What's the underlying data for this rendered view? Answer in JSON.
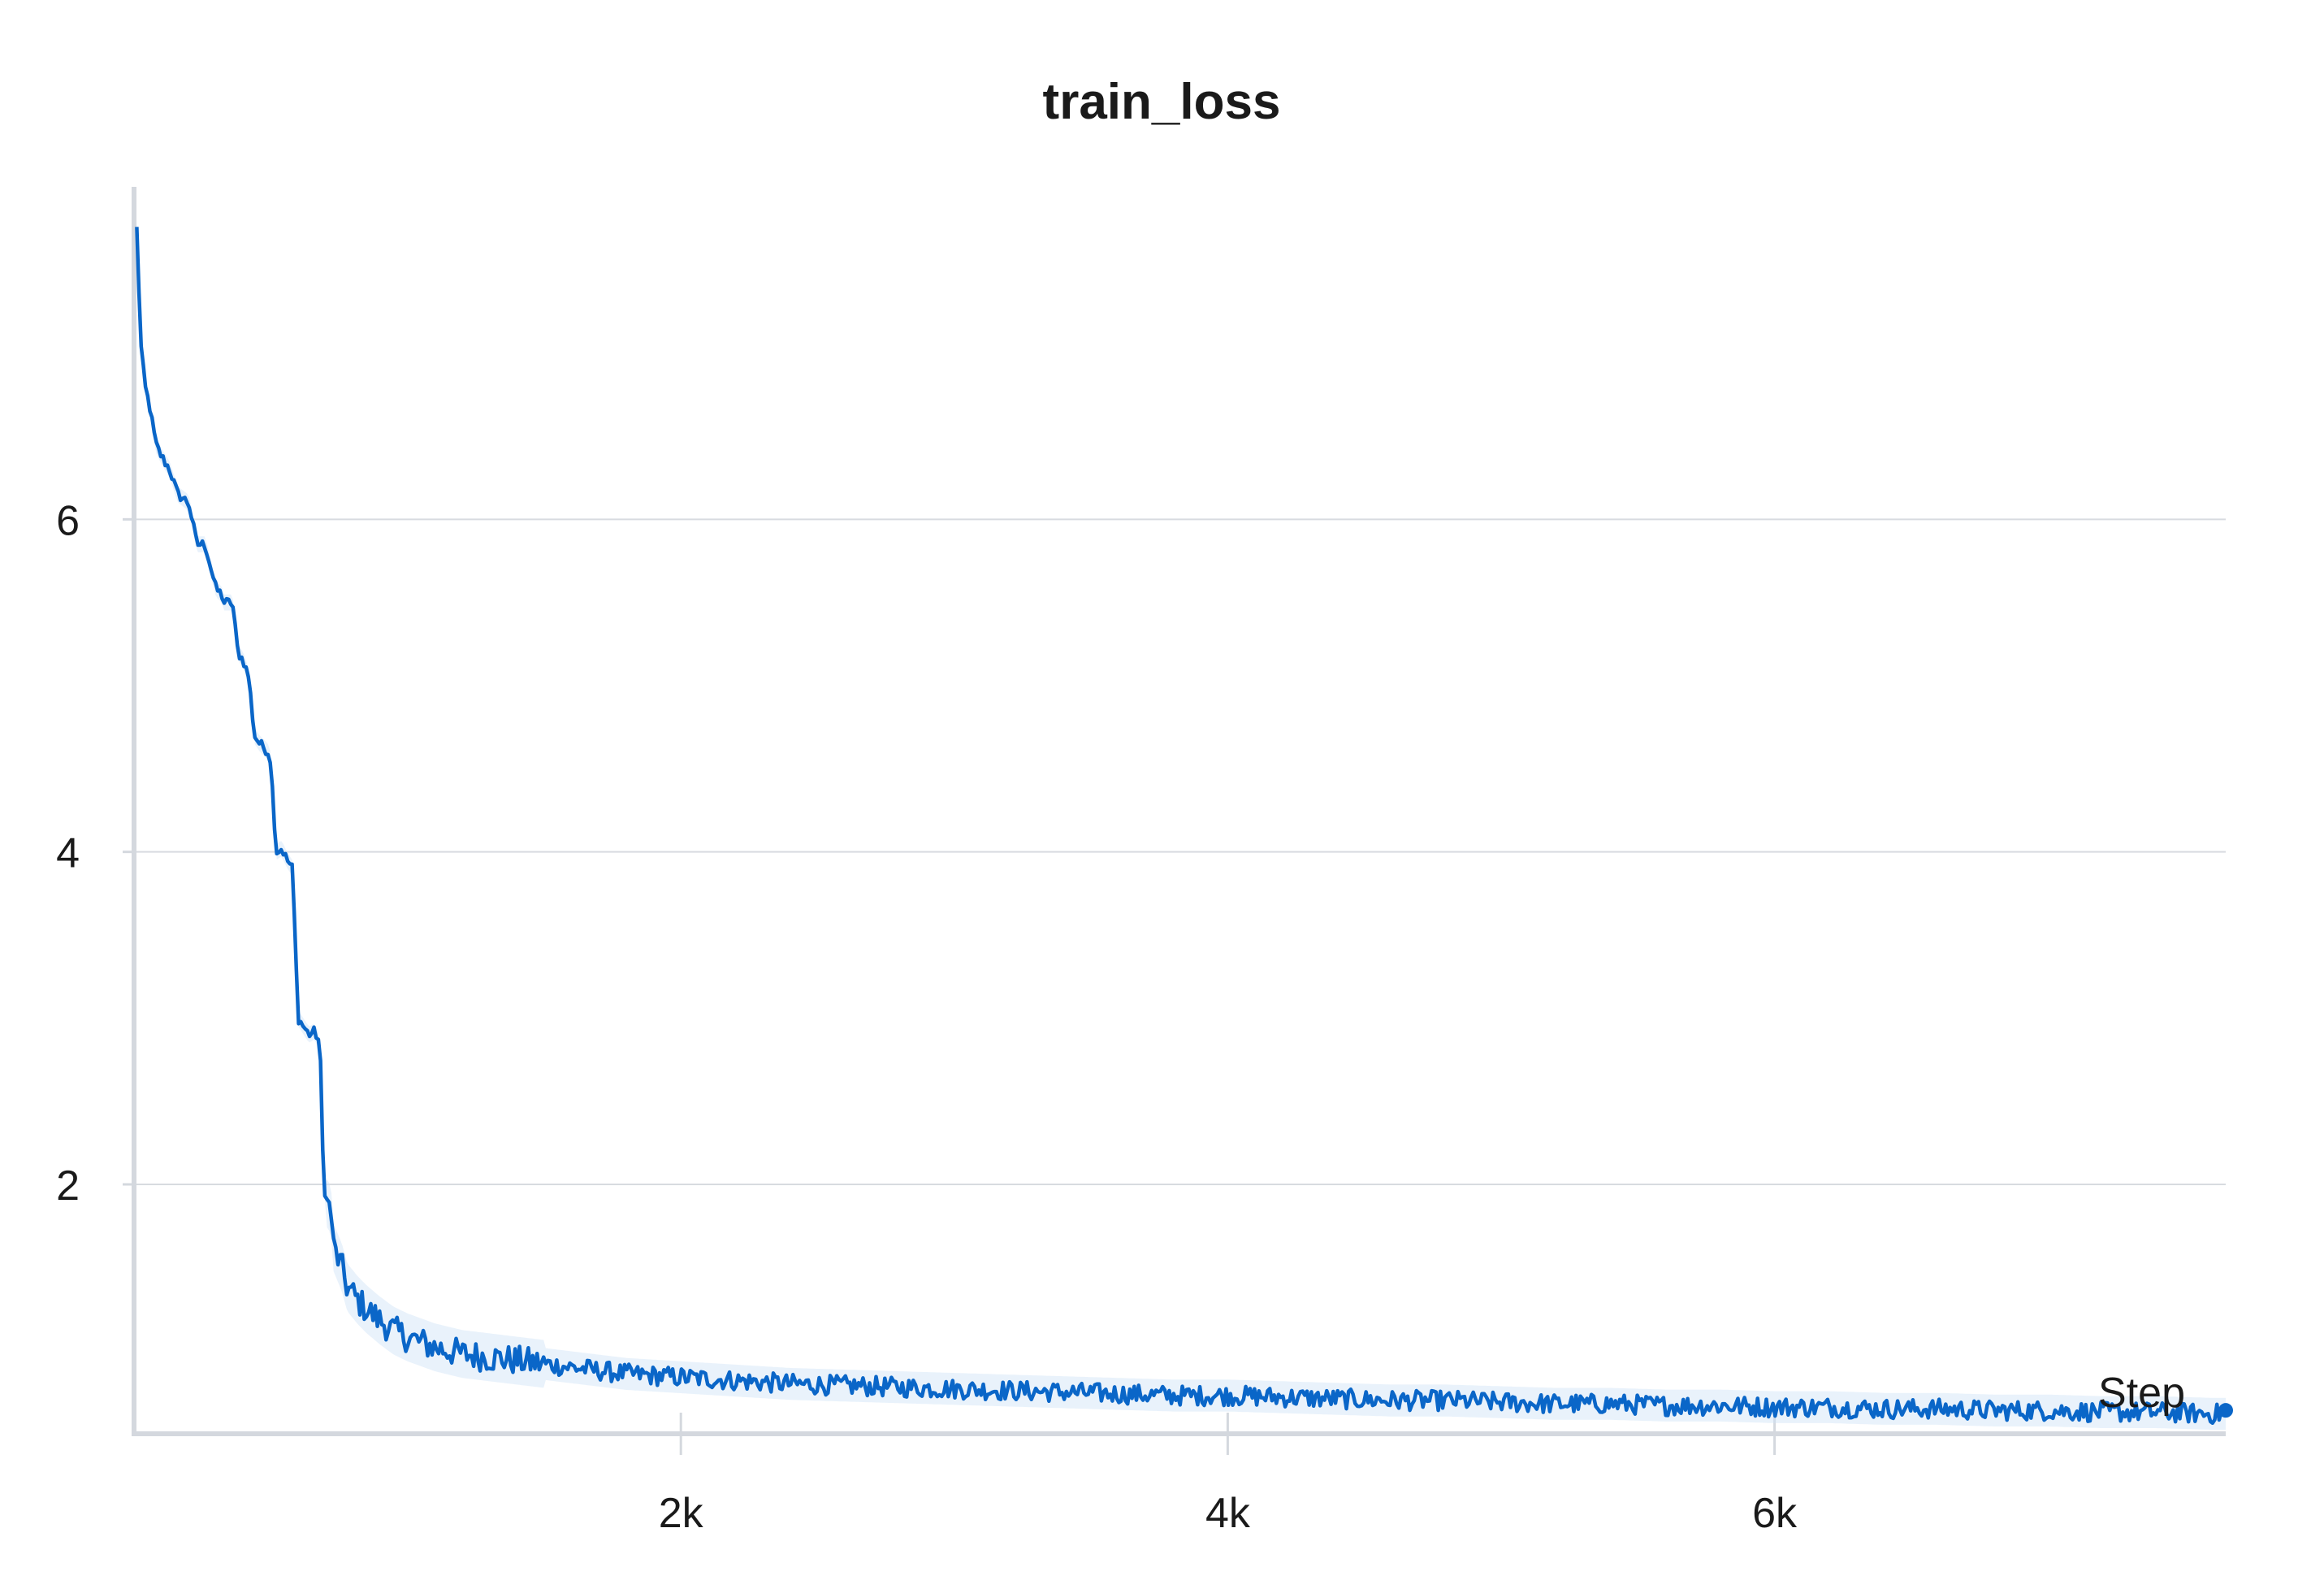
{
  "chart_data": {
    "type": "line",
    "title": "train_loss",
    "xlabel": "Step",
    "ylabel": "",
    "xlim": [
      0,
      7650
    ],
    "ylim": [
      0.5,
      8.0
    ],
    "grid": true,
    "x_ticks": [
      {
        "value": 2000,
        "label": "2k"
      },
      {
        "value": 4000,
        "label": "4k"
      },
      {
        "value": 6000,
        "label": "6k"
      }
    ],
    "y_ticks": [
      {
        "value": 2,
        "label": "2"
      },
      {
        "value": 4,
        "label": "4"
      },
      {
        "value": 6,
        "label": "6"
      }
    ],
    "series": [
      {
        "color": "#0a66c8",
        "x": [
          10,
          25,
          40,
          55,
          80,
          100,
          130,
          160,
          200,
          230,
          260,
          300,
          320,
          330,
          360,
          380,
          400,
          420,
          440,
          460,
          480,
          490,
          500,
          520,
          540,
          560,
          580,
          600,
          620,
          640,
          660,
          680,
          690,
          700,
          720,
          730,
          740,
          760,
          780,
          820,
          850,
          900,
          950,
          1000,
          1100,
          1200,
          1300,
          1400,
          1500,
          1600,
          1700,
          1800,
          1900,
          2000,
          2200,
          2400,
          2600,
          2800,
          3000,
          3200,
          3400,
          3600,
          3800,
          4000,
          4200,
          4400,
          4600,
          4800,
          5000,
          5200,
          5400,
          5600,
          5800,
          6000,
          6200,
          6400,
          6600,
          6800,
          7000,
          7200,
          7400,
          7600,
          7650
        ],
        "y": [
          7.75,
          7.05,
          6.8,
          6.7,
          6.45,
          6.38,
          6.3,
          6.15,
          6.1,
          5.85,
          5.85,
          5.58,
          5.55,
          5.5,
          5.5,
          5.2,
          5.15,
          5.05,
          4.7,
          4.65,
          4.62,
          4.6,
          4.55,
          4.0,
          4.02,
          3.95,
          3.9,
          3.0,
          2.95,
          2.9,
          2.92,
          2.85,
          2.2,
          1.9,
          1.85,
          1.62,
          1.58,
          1.5,
          1.38,
          1.3,
          1.25,
          1.18,
          1.12,
          1.08,
          1.02,
          0.98,
          0.96,
          0.94,
          0.92,
          0.9,
          0.88,
          0.86,
          0.85,
          0.84,
          0.82,
          0.8,
          0.79,
          0.78,
          0.77,
          0.76,
          0.75,
          0.74,
          0.73,
          0.73,
          0.72,
          0.71,
          0.7,
          0.7,
          0.69,
          0.68,
          0.68,
          0.67,
          0.67,
          0.66,
          0.66,
          0.65,
          0.65,
          0.64,
          0.64,
          0.63,
          0.63,
          0.62,
          0.62
        ]
      }
    ]
  }
}
